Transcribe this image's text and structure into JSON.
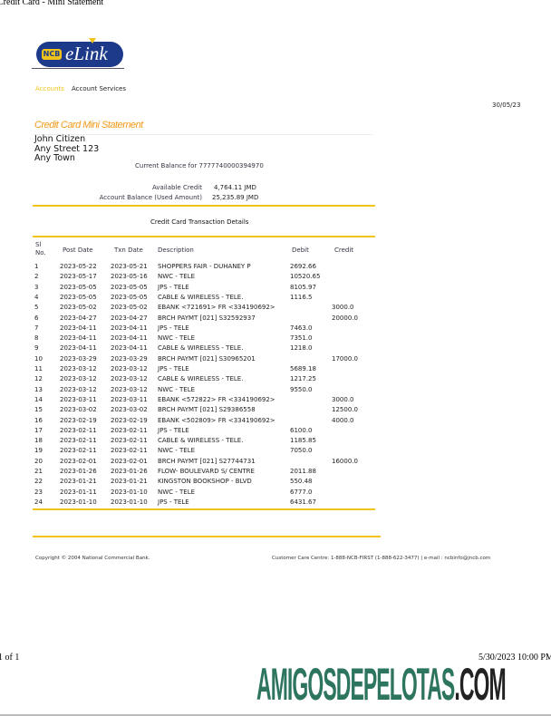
{
  "print_header": {
    "title": "Credit Card - Mini Statement"
  },
  "logo": {
    "text": "NCB eLink",
    "colors": {
      "blue": "#1d3a8a",
      "yellow": "#f2c41a"
    }
  },
  "nav": {
    "items": [
      {
        "label": "Accounts",
        "active": true
      },
      {
        "label": "Account Services",
        "active": false
      }
    ]
  },
  "date": "30/05/23",
  "statement_title": "Credit Card Mini Statement",
  "customer": {
    "name": "John Citizen",
    "street": "Any Street 123",
    "town": "Any Town"
  },
  "current_balance_label": "Current Balance for 7777740000394970",
  "balances": [
    {
      "label": "Available Credit",
      "value": "4,764.11 JMD"
    },
    {
      "label": "Account Balance (Used Amount)",
      "value": "25,235.89 JMD"
    }
  ],
  "table": {
    "title": "Credit Card Transaction Details",
    "headers": {
      "sl1": "Sl",
      "sl2": "No.",
      "post": "Post Date",
      "txn": "Txn Date",
      "desc": "Description",
      "debit": "Debit",
      "credit": "Credit"
    },
    "rows": [
      [
        "1",
        "2023-05-22",
        "2023-05-21",
        "SHOPPERS FAIR - DUHANEY P",
        "2692.66",
        ""
      ],
      [
        "2",
        "2023-05-17",
        "2023-05-16",
        "NWC - TELE",
        "10520.65",
        ""
      ],
      [
        "3",
        "2023-05-05",
        "2023-05-05",
        "JPS - TELE",
        "8105.97",
        ""
      ],
      [
        "4",
        "2023-05-05",
        "2023-05-05",
        "CABLE & WIRELESS - TELE.",
        "1116.5",
        ""
      ],
      [
        "5",
        "2023-05-02",
        "2023-05-02",
        "EBANK <721691> FR <334190692>",
        "",
        "3000.0"
      ],
      [
        "6",
        "2023-04-27",
        "2023-04-27",
        "BRCH PAYMT [021] S32592937",
        "",
        "20000.0"
      ],
      [
        "7",
        "2023-04-11",
        "2023-04-11",
        "JPS - TELE",
        "7463.0",
        ""
      ],
      [
        "8",
        "2023-04-11",
        "2023-04-11",
        "NWC - TELE",
        "7351.0",
        ""
      ],
      [
        "9",
        "2023-04-11",
        "2023-04-11",
        "CABLE & WIRELESS - TELE.",
        "1218.0",
        ""
      ],
      [
        "10",
        "2023-03-29",
        "2023-03-29",
        "BRCH PAYMT [021] S30965201",
        "",
        "17000.0"
      ],
      [
        "11",
        "2023-03-12",
        "2023-03-12",
        "JPS - TELE",
        "5689.18",
        ""
      ],
      [
        "12",
        "2023-03-12",
        "2023-03-12",
        "CABLE & WIRELESS - TELE.",
        "1217.25",
        ""
      ],
      [
        "13",
        "2023-03-12",
        "2023-03-12",
        "NWC - TELE",
        "9550.0",
        ""
      ],
      [
        "14",
        "2023-03-11",
        "2023-03-11",
        "EBANK <572822> FR <334190692>",
        "",
        "3000.0"
      ],
      [
        "15",
        "2023-03-02",
        "2023-03-02",
        "BRCH PAYMT [021] S29386558",
        "",
        "12500.0"
      ],
      [
        "16",
        "2023-02-19",
        "2023-02-19",
        "EBANK <502809> FR <334190692>",
        "",
        "4000.0"
      ],
      [
        "17",
        "2023-02-11",
        "2023-02-11",
        "JPS - TELE",
        "6100.0",
        ""
      ],
      [
        "18",
        "2023-02-11",
        "2023-02-11",
        "CABLE & WIRELESS - TELE.",
        "1185.85",
        ""
      ],
      [
        "19",
        "2023-02-11",
        "2023-02-11",
        "NWC - TELE",
        "7050.0",
        ""
      ],
      [
        "20",
        "2023-02-01",
        "2023-02-01",
        "BRCH PAYMT [021] S27744731",
        "",
        "16000.0"
      ],
      [
        "21",
        "2023-01-26",
        "2023-01-26",
        "FLOW- BOULEVARD S/ CENTRE",
        "2011.88",
        ""
      ],
      [
        "22",
        "2023-01-21",
        "2023-01-21",
        "KINGSTON BOOKSHOP - BLVD",
        "550.48",
        ""
      ],
      [
        "23",
        "2023-01-11",
        "2023-01-10",
        "NWC - TELE",
        "6777.0",
        ""
      ],
      [
        "24",
        "2023-01-10",
        "2023-01-10",
        "JPS - TELE",
        "6431.67",
        ""
      ]
    ]
  },
  "footer": {
    "copyright": "Copyright © 2004 National Commercial Bank.",
    "contact": "Customer Care Centre: 1-888-NCB-FIRST (1-888-622-3477) | e-mail : ncbinfo@jncb.com"
  },
  "print_footer": {
    "page": "1 of 1",
    "datetime": "5/30/2023 10:00 PM"
  },
  "watermark": {
    "part1": "AMIGOSDEPELOTAS",
    "part2": ".COM"
  }
}
